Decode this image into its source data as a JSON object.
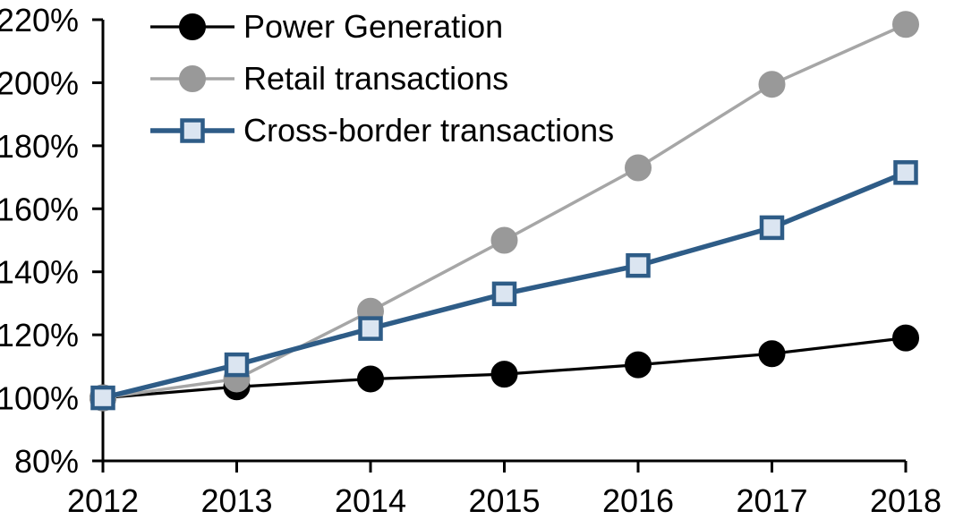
{
  "chart_data": {
    "type": "line",
    "title": "",
    "xlabel": "",
    "ylabel": "",
    "x": [
      2012,
      2013,
      2014,
      2015,
      2016,
      2017,
      2018
    ],
    "xtick_labels": [
      "2012",
      "2013",
      "2014",
      "2015",
      "2016",
      "2017",
      "2018"
    ],
    "ylim": [
      80,
      220
    ],
    "ytick_step": 20,
    "ytick_labels": [
      "80%",
      "100%",
      "120%",
      "140%",
      "160%",
      "180%",
      "200%",
      "220%"
    ],
    "grid": false,
    "legend_position": "top-left",
    "axis_color": "#000000",
    "background_color": "#ffffff",
    "series": [
      {
        "name": "Power Generation",
        "values": [
          100,
          103.5,
          106,
          107.5,
          110.5,
          114,
          119
        ],
        "line_color": "#000000",
        "line_width": 3.25,
        "marker": "circle",
        "marker_fill": "#000000",
        "marker_border": "#000000"
      },
      {
        "name": "Retail transactions",
        "values": [
          100,
          106,
          127.5,
          150,
          173,
          199.5,
          218.5
        ],
        "line_color": "#a6a6a6",
        "line_width": 3.5,
        "marker": "circle",
        "marker_fill": "#999999",
        "marker_border": "#999999"
      },
      {
        "name": "Cross-border transactions",
        "values": [
          100,
          110.5,
          122,
          133,
          142,
          154,
          171.5
        ],
        "line_color": "#2e5c87",
        "line_width": 5.5,
        "marker": "square",
        "marker_fill": "#dbe5f1",
        "marker_border": "#2e5c87"
      }
    ]
  }
}
